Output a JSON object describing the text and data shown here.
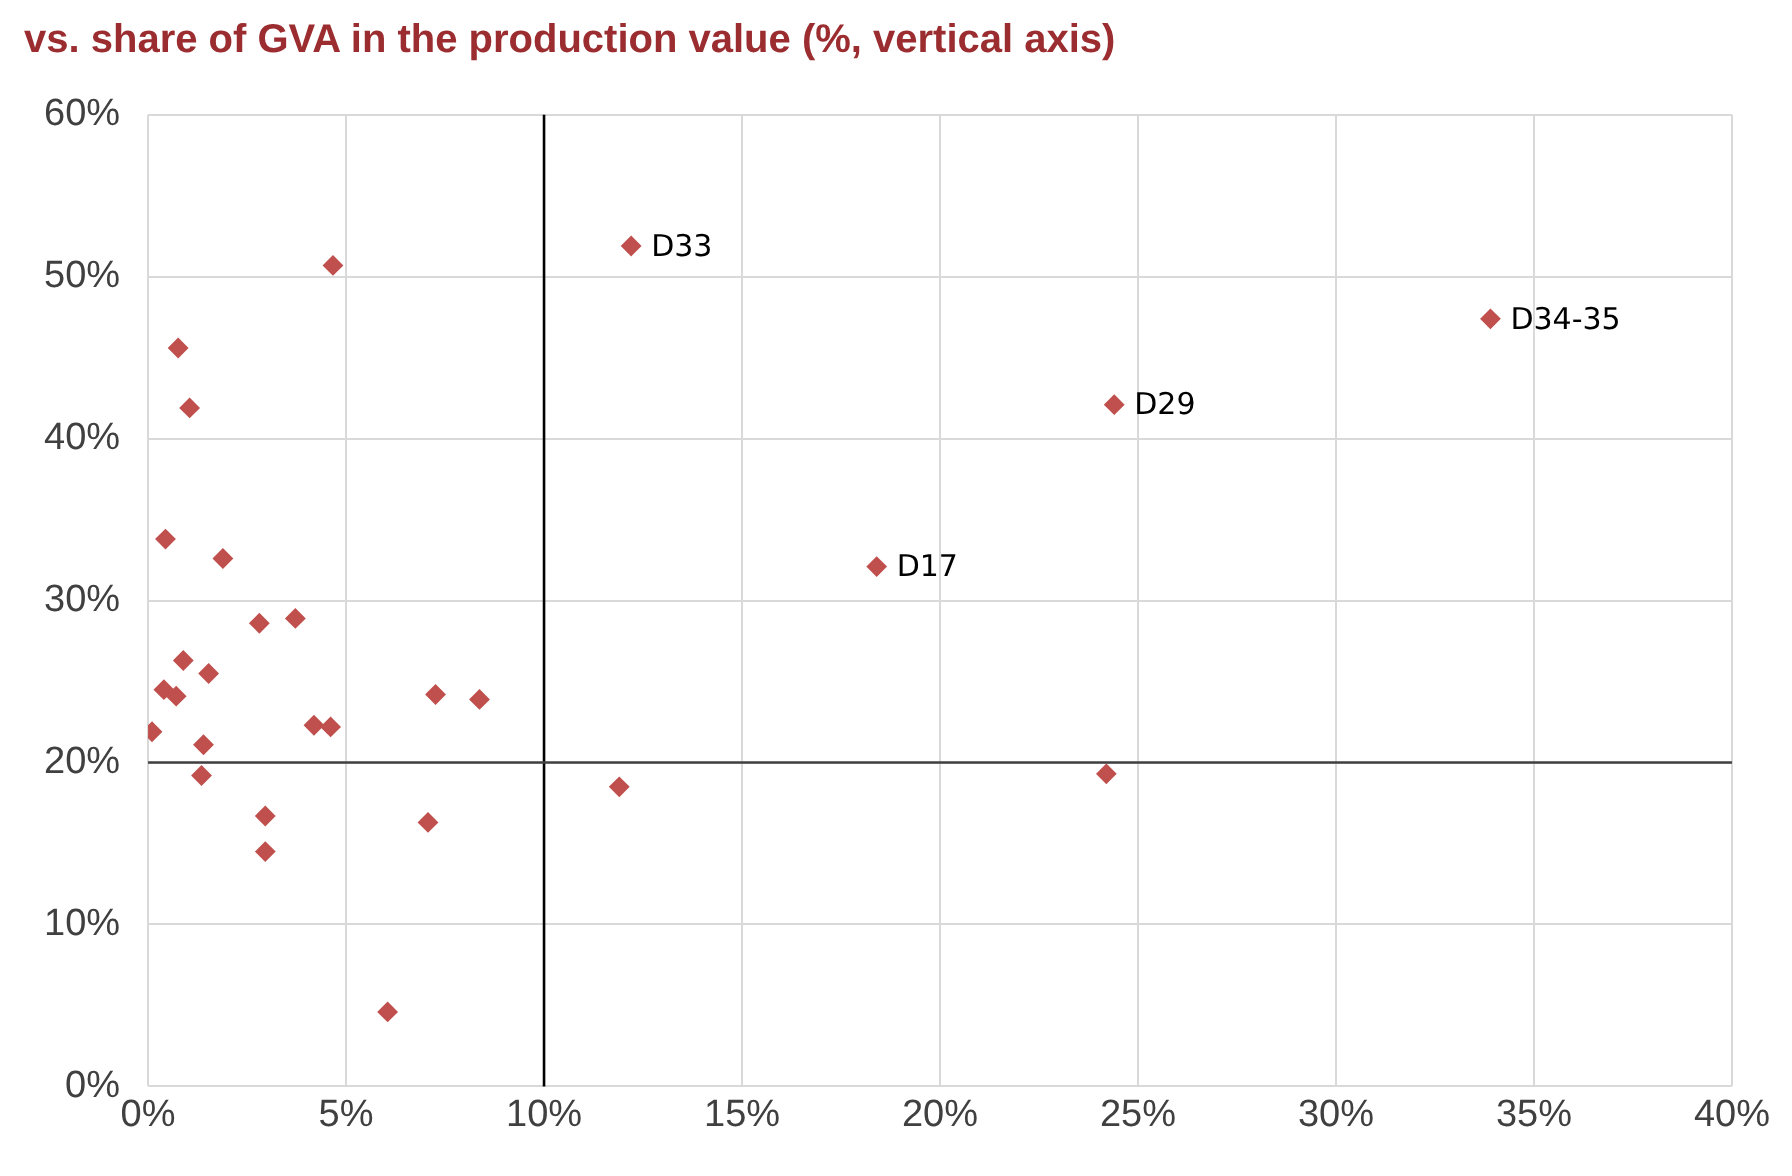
{
  "chart_data": {
    "type": "scatter",
    "title": "vs. share of GVA in the production value (%, vertical axis)",
    "x": [
      4.67,
      0.76,
      1.05,
      0.44,
      1.89,
      2.81,
      3.72,
      0.89,
      1.53,
      0.4,
      0.71,
      7.26,
      8.37,
      0.1,
      4.19,
      4.61,
      1.4,
      1.35,
      2.96,
      2.96,
      7.07,
      6.05,
      12.2,
      33.9,
      24.4,
      18.4,
      11.9,
      24.2
    ],
    "series": [
      {
        "color": "#c0504d",
        "values": [
          50.7,
          45.6,
          41.9,
          33.8,
          32.6,
          28.6,
          28.9,
          26.3,
          25.5,
          24.5,
          24.1,
          24.2,
          23.9,
          21.9,
          22.3,
          22.2,
          21.1,
          19.2,
          16.7,
          14.5,
          16.3,
          4.6,
          51.9,
          47.4,
          42.1,
          32.1,
          18.5,
          19.3
        ]
      }
    ],
    "xlim": [
      0,
      40
    ],
    "ylim": [
      0,
      60
    ],
    "xticks": [
      {
        "value": 0,
        "label": "0%"
      },
      {
        "value": 5,
        "label": "5%"
      },
      {
        "value": 10,
        "label": "10%"
      },
      {
        "value": 15,
        "label": "15%"
      },
      {
        "value": 20,
        "label": "20%"
      },
      {
        "value": 25,
        "label": "25%"
      },
      {
        "value": 30,
        "label": "30%"
      },
      {
        "value": 35,
        "label": "35%"
      },
      {
        "value": 40,
        "label": "40%"
      }
    ],
    "yticks": [
      {
        "value": 0,
        "label": "0%"
      },
      {
        "value": 10,
        "label": "10%"
      },
      {
        "value": 20,
        "label": "20%"
      },
      {
        "value": 30,
        "label": "30%"
      },
      {
        "value": 40,
        "label": "40%"
      },
      {
        "value": 50,
        "label": "50%"
      },
      {
        "value": 60,
        "label": "60%"
      }
    ],
    "ref_lines": [
      {
        "axis": "x",
        "value": 10,
        "color": "#000000"
      },
      {
        "axis": "y",
        "value": 20,
        "color": "#404040"
      }
    ],
    "annotations": [
      {
        "text": "D33",
        "x": 12.2,
        "y": 51.9
      },
      {
        "text": "D34-35",
        "x": 33.9,
        "y": 47.4
      },
      {
        "text": "D29",
        "x": 24.4,
        "y": 42.1
      },
      {
        "text": "D17",
        "x": 18.4,
        "y": 32.1
      }
    ],
    "grid": true,
    "legend": false,
    "marker": "diamond"
  }
}
